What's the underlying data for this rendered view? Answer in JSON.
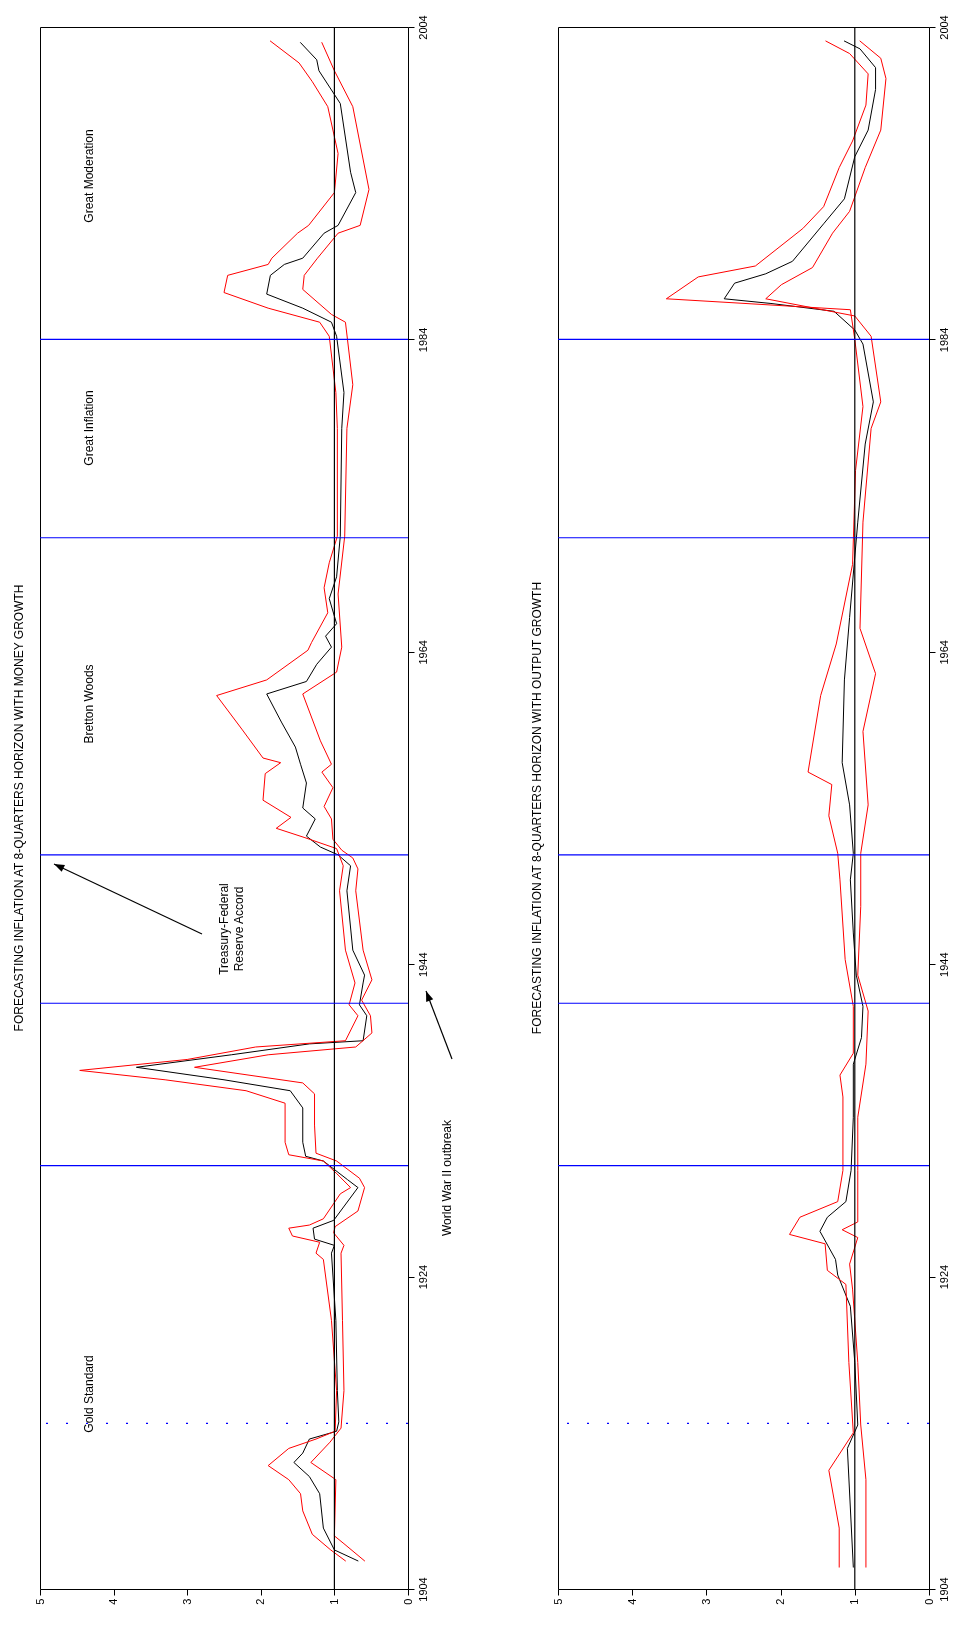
{
  "chart_data": [
    {
      "type": "line",
      "title": "FORECASTING INFLATION AT 8-QUARTERS HORIZON WITH MONEY GROWTH",
      "xlim": [
        5,
        0
      ],
      "xticks": [
        0,
        1,
        2,
        3,
        4,
        5
      ],
      "ylim": [
        1904,
        2004
      ],
      "yticks": [
        1904,
        1924,
        1944,
        1964,
        1984,
        2004
      ],
      "series": [
        {
          "color": "#000000",
          "values": [
            1905.8,
            1906.5,
            1907.9,
            1910.1,
            1911.2,
            1912.1,
            1912.7,
            1913.6,
            1914.1,
            1914.7,
            1916.7,
            1921.2,
            1925.5,
            1926.0,
            1926.4,
            1927.1,
            1927.6,
            1929.7,
            1930.2,
            1931.4,
            1931.7,
            1932.6,
            1934.8,
            1935.9,
            1936.6,
            1937.4,
            1938.2,
            1938.9,
            1939.1,
            1940.7,
            1941.4,
            1942.8,
            1943.3,
            1944.9,
            1948.7,
            1950.3,
            1951.0,
            1951.5,
            1952.2,
            1953.3,
            1954.0,
            1955.6,
            1956.8,
            1957.9,
            1959.5,
            1961.3,
            1962.1,
            1963.2,
            1964.3,
            1965.0,
            1965.8,
            1967.4,
            1968.8,
            1971.4,
            1978.3,
            1980.6,
            1984.2,
            1985.1,
            1986.0,
            1986.9,
            1988.1,
            1988.8,
            1989.2,
            1990.8,
            1991.3,
            1993.4,
            1994.7,
            1999.1,
            2001.2,
            2001.9,
            2003.0
          ],
          "x": [
            0.68,
            1.0,
            1.15,
            1.2,
            1.34,
            1.55,
            1.43,
            1.34,
            0.97,
            0.94,
            0.96,
            0.98,
            1.04,
            1.0,
            1.27,
            1.29,
            1.01,
            0.68,
            0.82,
            1.15,
            1.39,
            1.43,
            1.43,
            1.6,
            2.5,
            3.69,
            2.4,
            1.34,
            0.61,
            0.56,
            0.66,
            0.61,
            0.59,
            0.75,
            0.83,
            0.78,
            0.95,
            1.19,
            1.38,
            1.26,
            1.43,
            1.38,
            1.46,
            1.53,
            1.72,
            1.92,
            1.38,
            1.24,
            1.04,
            1.12,
            0.97,
            1.07,
            0.97,
            0.92,
            0.9,
            0.87,
            0.97,
            1.04,
            1.43,
            1.92,
            1.87,
            1.68,
            1.43,
            1.14,
            0.95,
            0.71,
            0.78,
            0.92,
            1.21,
            1.24,
            1.46
          ]
        },
        {
          "color": "#ff0000",
          "values": [
            1905.8,
            1906.5,
            1907.5,
            1909.0,
            1910.1,
            1911.0,
            1911.9,
            1913.0,
            1913.6,
            1914.1,
            1916.7,
            1921.2,
            1925.1,
            1925.5,
            1926.2,
            1926.6,
            1927.1,
            1927.3,
            1927.7,
            1929.3,
            1929.7,
            1930.6,
            1931.4,
            1931.8,
            1932.6,
            1935.1,
            1935.9,
            1936.6,
            1937.2,
            1937.9,
            1938.7,
            1939.1,
            1940.7,
            1941.4,
            1942.8,
            1944.9,
            1948.7,
            1950.3,
            1951.4,
            1952.1,
            1952.7,
            1953.4,
            1954.5,
            1956.2,
            1956.9,
            1957.2,
            1959.0,
            1961.2,
            1962.2,
            1964.1,
            1964.6,
            1966.5,
            1968.1,
            1969.7,
            1971.4,
            1978.3,
            1980.6,
            1984.2,
            1985.1,
            1986.0,
            1987.0,
            1988.1,
            1988.8,
            1989.2,
            1990.8,
            1991.3,
            1993.4,
            1995.9,
            1998.9,
            2000.5,
            2001.7,
            2003.1
          ],
          "x": [
            0.85,
            1.05,
            1.3,
            1.43,
            1.46,
            1.62,
            1.9,
            1.62,
            1.25,
            0.99,
            0.97,
            1.04,
            1.15,
            1.25,
            1.2,
            1.57,
            1.62,
            1.34,
            1.15,
            0.92,
            0.78,
            0.97,
            1.15,
            1.62,
            1.67,
            1.67,
            2.2,
            3.3,
            4.46,
            3.0,
            2.07,
            0.85,
            0.68,
            0.8,
            0.72,
            0.85,
            0.93,
            0.88,
            0.97,
            1.4,
            1.79,
            1.59,
            1.97,
            1.94,
            1.73,
            1.97,
            2.25,
            2.6,
            1.92,
            1.36,
            1.31,
            1.09,
            1.14,
            1.07,
            0.96,
            0.96,
            0.98,
            1.07,
            1.2,
            1.9,
            2.5,
            2.45,
            1.9,
            1.85,
            1.5,
            1.35,
            1.0,
            0.95,
            1.09,
            1.3,
            1.48,
            1.87
          ]
        },
        {
          "color": "#ff0000",
          "values": [
            1905.8,
            1906.9,
            1907.4,
            1911.0,
            1912.1,
            1913.4,
            1914.3,
            1916.7,
            1921.2,
            1925.5,
            1926.0,
            1926.8,
            1927.2,
            1928.2,
            1929.7,
            1930.3,
            1931.4,
            1931.9,
            1933.7,
            1935.7,
            1936.4,
            1937.4,
            1938.2,
            1938.7,
            1939.6,
            1940.7,
            1941.7,
            1943.0,
            1944.9,
            1948.7,
            1950.1,
            1950.8,
            1951.3,
            1952.0,
            1953.3,
            1954.1,
            1955.3,
            1956.3,
            1956.8,
            1958.3,
            1961.3,
            1962.7,
            1964.3,
            1967.7,
            1971.4,
            1978.3,
            1981.1,
            1985.1,
            1985.6,
            1987.2,
            1988.1,
            1989.2,
            1990.8,
            1991.3,
            1993.6,
            1998.9,
            2001.2,
            2003.0
          ],
          "x": [
            0.59,
            0.87,
            1.0,
            0.98,
            1.32,
            1.06,
            0.91,
            0.87,
            0.89,
            0.91,
            0.87,
            1.01,
            0.99,
            0.68,
            0.59,
            0.66,
            0.97,
            1.25,
            1.27,
            1.27,
            1.43,
            2.9,
            1.9,
            0.71,
            0.49,
            0.51,
            0.63,
            0.49,
            0.61,
            0.71,
            0.68,
            0.75,
            0.9,
            1.02,
            1.04,
            1.14,
            1.02,
            1.17,
            1.04,
            1.19,
            1.43,
            0.97,
            0.9,
            0.95,
            0.86,
            0.83,
            0.75,
            0.85,
            1.04,
            1.43,
            1.41,
            1.23,
            0.95,
            0.65,
            0.53,
            0.75,
            1.0,
            1.17
          ]
        }
      ],
      "ref_lines": [
        {
          "axis": "x",
          "value": 1,
          "color": "#000000"
        },
        {
          "axis": "y",
          "value": 1914.6,
          "color": "#0000ff",
          "line_style": "dotted"
        },
        {
          "axis": "y",
          "value": 1931.1,
          "color": "#0000ff"
        },
        {
          "axis": "y",
          "value": 1941.5,
          "color": "#0000ff"
        },
        {
          "axis": "y",
          "value": 1951,
          "color": "#0000ff"
        },
        {
          "axis": "y",
          "value": 1971.3,
          "color": "#0000ff"
        },
        {
          "axis": "y",
          "value": 1984,
          "color": "#0000ff"
        }
      ],
      "annotations": [
        "Gold Standard",
        "Bretton Woods",
        "Great Inflation",
        "Great Moderation",
        "Treasury-Federal Reserve Accord",
        "World War II outbreak"
      ]
    },
    {
      "type": "line",
      "title": "FORECASTING INFLATION AT 8-QUARTERS HORIZON WITH OUTPUT GROWTH",
      "xlim": [
        5,
        0
      ],
      "xticks": [
        0,
        1,
        2,
        3,
        4,
        5
      ],
      "ylim": [
        1904,
        2004
      ],
      "yticks": [
        1904,
        1924,
        1944,
        1964,
        1984,
        2004
      ],
      "series": [
        {
          "color": "#000000",
          "values": [
            1905.4,
            1913.0,
            1914.5,
            1918.5,
            1922.1,
            1924.1,
            1925.1,
            1926.9,
            1927.8,
            1928.8,
            1930.8,
            1934.2,
            1937.6,
            1939.3,
            1941.3,
            1943.3,
            1946.0,
            1949.4,
            1951.1,
            1954.2,
            1956.9,
            1962.2,
            1966.2,
            1972.3,
            1977.3,
            1980.0,
            1983.7,
            1984.6,
            1985.8,
            1986.3,
            1986.6,
            1987.6,
            1988.2,
            1989.0,
            1991.4,
            1993.0,
            1995.7,
            1997.4,
            2000.0,
            2001.4,
            2002.6,
            2003.1
          ],
          "x": [
            1.02,
            1.1,
            0.96,
            1.0,
            1.06,
            1.23,
            1.26,
            1.47,
            1.37,
            1.12,
            1.05,
            1.02,
            1.02,
            0.91,
            0.89,
            0.98,
            1.02,
            1.06,
            1.02,
            1.07,
            1.17,
            1.14,
            1.07,
            0.96,
            0.86,
            0.75,
            0.89,
            1.0,
            1.28,
            2.13,
            2.76,
            2.62,
            2.2,
            1.84,
            1.42,
            1.14,
            1.0,
            0.82,
            0.72,
            0.72,
            0.93,
            1.14
          ]
        },
        {
          "color": "#ff0000",
          "values": [
            1905.4,
            1907.9,
            1911.6,
            1914.0,
            1918.5,
            1923.5,
            1924.4,
            1926.1,
            1926.7,
            1927.8,
            1928.8,
            1930.8,
            1935.5,
            1936.9,
            1938.3,
            1941.3,
            1944.3,
            1949.4,
            1951.1,
            1953.5,
            1955.5,
            1956.3,
            1961.2,
            1964.5,
            1969.6,
            1975.6,
            1979.7,
            1984.0,
            1985.9,
            1986.6,
            1988.0,
            1988.7,
            1991.1,
            1992.5,
            1995.0,
            1996.7,
            1999.0,
            2001.0,
            2002.3,
            2003.1
          ],
          "x": [
            1.21,
            1.21,
            1.35,
            1.02,
            1.08,
            1.12,
            1.37,
            1.4,
            1.88,
            1.74,
            1.23,
            1.16,
            1.16,
            1.2,
            1.02,
            1.02,
            1.13,
            1.2,
            1.23,
            1.35,
            1.31,
            1.63,
            1.46,
            1.25,
            1.03,
            0.99,
            0.89,
            1.0,
            1.06,
            3.54,
            3.11,
            2.34,
            1.7,
            1.42,
            1.21,
            1.03,
            0.85,
            0.82,
            1.07,
            1.39
          ]
        },
        {
          "color": "#ff0000",
          "values": [
            1905.4,
            1911.0,
            1914.5,
            1918.5,
            1923.2,
            1924.8,
            1926.5,
            1927.0,
            1927.5,
            1930.8,
            1934.2,
            1937.6,
            1941.0,
            1943.3,
            1947.7,
            1951.1,
            1954.2,
            1958.9,
            1962.6,
            1965.5,
            1972.3,
            1978.3,
            1980.0,
            1984.2,
            1985.5,
            1986.6,
            1987.5,
            1988.6,
            1990.8,
            1992.2,
            1995.0,
            1997.4,
            2000.7,
            2002.0,
            2003.1
          ],
          "x": [
            0.85,
            0.85,
            0.92,
            0.96,
            1.03,
            1.07,
            0.96,
            1.17,
            0.96,
            0.96,
            0.96,
            0.85,
            0.82,
            0.96,
            0.92,
            0.92,
            0.82,
            0.89,
            0.72,
            0.93,
            0.89,
            0.78,
            0.65,
            0.78,
            1.0,
            2.2,
            1.99,
            1.57,
            1.3,
            1.07,
            0.86,
            0.65,
            0.58,
            0.65,
            0.93
          ]
        }
      ],
      "ref_lines": [
        {
          "axis": "x",
          "value": 1,
          "color": "#000000"
        },
        {
          "axis": "y",
          "value": 1914.6,
          "color": "#0000ff",
          "line_style": "dotted"
        },
        {
          "axis": "y",
          "value": 1931.1,
          "color": "#0000ff"
        },
        {
          "axis": "y",
          "value": 1941.5,
          "color": "#0000ff"
        },
        {
          "axis": "y",
          "value": 1951,
          "color": "#0000ff"
        },
        {
          "axis": "y",
          "value": 1971.3,
          "color": "#0000ff"
        },
        {
          "axis": "y",
          "value": 1984,
          "color": "#0000ff"
        }
      ]
    }
  ]
}
